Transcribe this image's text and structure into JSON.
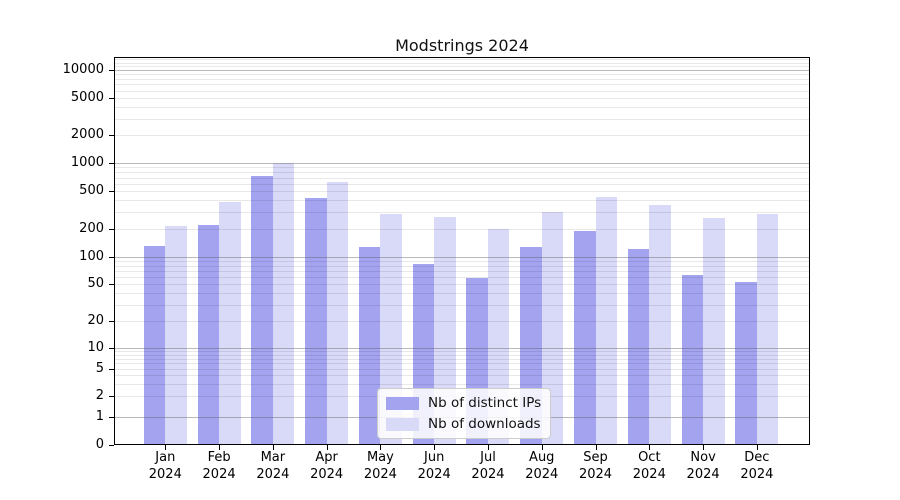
{
  "chart_data": {
    "type": "bar",
    "title": "Modstrings 2024",
    "x_labels": [
      {
        "month": "Jan",
        "year": "2024"
      },
      {
        "month": "Feb",
        "year": "2024"
      },
      {
        "month": "Mar",
        "year": "2024"
      },
      {
        "month": "Apr",
        "year": "2024"
      },
      {
        "month": "May",
        "year": "2024"
      },
      {
        "month": "Jun",
        "year": "2024"
      },
      {
        "month": "Jul",
        "year": "2024"
      },
      {
        "month": "Aug",
        "year": "2024"
      },
      {
        "month": "Sep",
        "year": "2024"
      },
      {
        "month": "Oct",
        "year": "2024"
      },
      {
        "month": "Nov",
        "year": "2024"
      },
      {
        "month": "Dec",
        "year": "2024"
      }
    ],
    "series": [
      {
        "name": "Nb of distinct IPs",
        "color": "#a3a3f0",
        "values": [
          130,
          220,
          730,
          425,
          128,
          84,
          59,
          128,
          190,
          122,
          63,
          53
        ]
      },
      {
        "name": "Nb of downloads",
        "color": "#d9d9f8",
        "values": [
          214,
          385,
          1000,
          625,
          287,
          266,
          197,
          298,
          435,
          356,
          258,
          287
        ]
      }
    ],
    "y_ticks": [
      0,
      1,
      2,
      5,
      10,
      20,
      50,
      100,
      200,
      500,
      1000,
      2000,
      5000,
      10000
    ],
    "y_scale": "symlog",
    "ylim": [
      0,
      13800
    ],
    "xlabel": "",
    "ylabel": "",
    "grid": "on",
    "legend_position": "lower-center-inside"
  }
}
